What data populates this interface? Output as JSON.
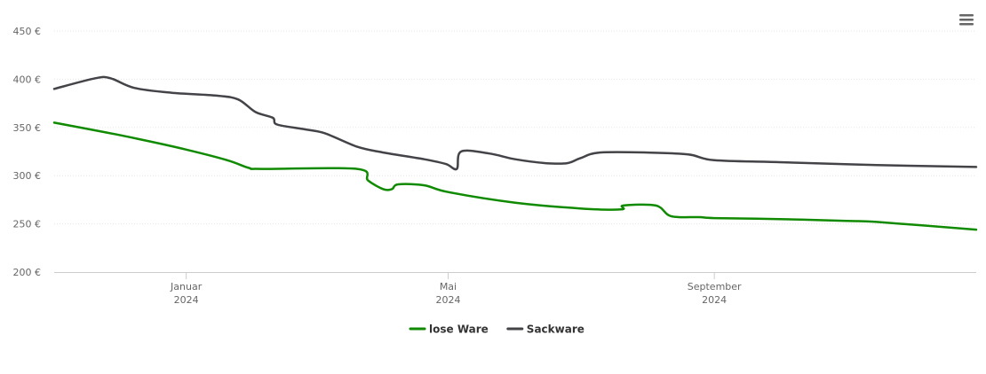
{
  "chart_data": {
    "type": "line",
    "title": "",
    "xlabel": "",
    "ylabel": "",
    "ylim": [
      200,
      450
    ],
    "y_ticks": [
      200,
      250,
      300,
      350,
      400,
      450
    ],
    "y_tick_format": "{v} €",
    "grid": true,
    "legend_position": "bottom-center",
    "x_range": [
      "2023-11-01",
      "2024-12-31"
    ],
    "x_ticks": [
      {
        "date": "2024-01-01",
        "label": "Januar",
        "year": "2024"
      },
      {
        "date": "2024-05-01",
        "label": "Mai",
        "year": "2024"
      },
      {
        "date": "2024-09-01",
        "label": "September",
        "year": "2024"
      }
    ],
    "series": [
      {
        "name": "lose Ware",
        "color": "#108a00",
        "points": [
          [
            "2023-11-01",
            355
          ],
          [
            "2023-11-20",
            347
          ],
          [
            "2023-12-10",
            338
          ],
          [
            "2024-01-01",
            327
          ],
          [
            "2024-01-20",
            316
          ],
          [
            "2024-01-30",
            308
          ],
          [
            "2024-02-05",
            307
          ],
          [
            "2024-03-20",
            307
          ],
          [
            "2024-03-25",
            295
          ],
          [
            "2024-04-01",
            286
          ],
          [
            "2024-04-05",
            286
          ],
          [
            "2024-04-08",
            291
          ],
          [
            "2024-04-20",
            290
          ],
          [
            "2024-05-01",
            283
          ],
          [
            "2024-06-01",
            272
          ],
          [
            "2024-07-01",
            266
          ],
          [
            "2024-07-20",
            265
          ],
          [
            "2024-07-21",
            269
          ],
          [
            "2024-08-05",
            269
          ],
          [
            "2024-08-12",
            258
          ],
          [
            "2024-08-25",
            257
          ],
          [
            "2024-09-01",
            256
          ],
          [
            "2024-10-01",
            255
          ],
          [
            "2024-11-01",
            253
          ],
          [
            "2024-11-15",
            252
          ],
          [
            "2024-12-31",
            244
          ]
        ]
      },
      {
        "name": "Sackware",
        "color": "#434348",
        "points": [
          [
            "2023-11-01",
            390
          ],
          [
            "2023-11-20",
            401
          ],
          [
            "2023-11-27",
            401
          ],
          [
            "2023-12-08",
            391
          ],
          [
            "2023-12-25",
            386
          ],
          [
            "2024-01-15",
            383
          ],
          [
            "2024-01-25",
            379
          ],
          [
            "2024-02-02",
            366
          ],
          [
            "2024-02-10",
            360
          ],
          [
            "2024-02-12",
            353
          ],
          [
            "2024-02-25",
            348
          ],
          [
            "2024-03-05",
            344
          ],
          [
            "2024-03-20",
            330
          ],
          [
            "2024-04-01",
            324
          ],
          [
            "2024-04-20",
            317
          ],
          [
            "2024-04-30",
            312
          ],
          [
            "2024-05-05",
            307
          ],
          [
            "2024-05-07",
            325
          ],
          [
            "2024-05-20",
            323
          ],
          [
            "2024-06-01",
            317
          ],
          [
            "2024-06-15",
            313
          ],
          [
            "2024-06-25",
            313
          ],
          [
            "2024-07-01",
            318
          ],
          [
            "2024-07-10",
            324
          ],
          [
            "2024-08-01",
            324
          ],
          [
            "2024-08-20",
            322
          ],
          [
            "2024-09-01",
            316
          ],
          [
            "2024-10-01",
            314
          ],
          [
            "2024-11-15",
            311
          ],
          [
            "2024-12-31",
            309
          ]
        ]
      }
    ]
  }
}
